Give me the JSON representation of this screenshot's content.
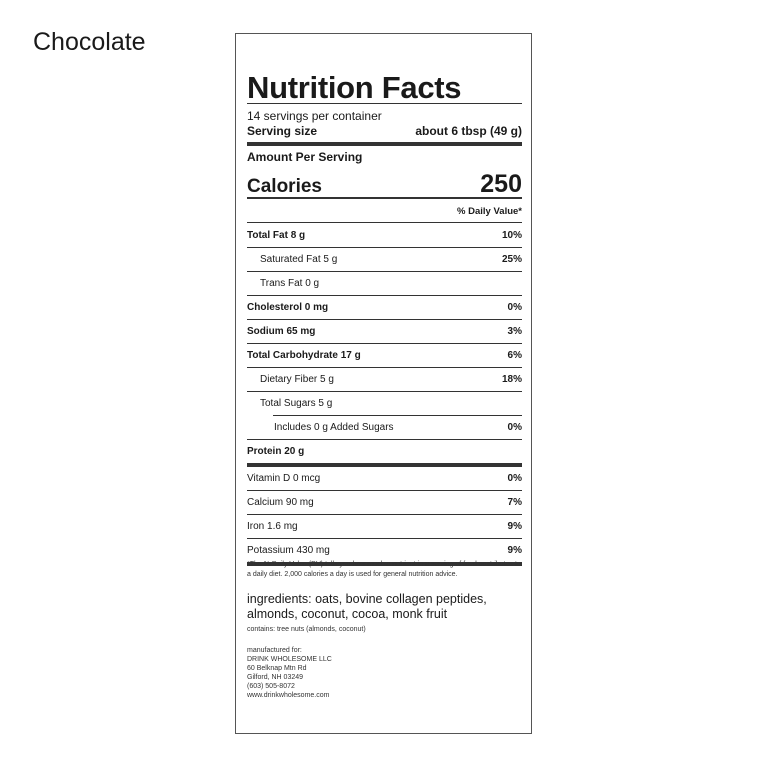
{
  "flavor": "Chocolate",
  "label": {
    "title": "Nutrition Facts",
    "servings_per_container": "14 servings per container",
    "serving_size_label": "Serving size",
    "serving_size_value": "about 6 tbsp (49 g)",
    "amount_per_serving": "Amount Per Serving",
    "calories_label": "Calories",
    "calories_value": "250",
    "daily_value_header": "% Daily Value*",
    "nutrients": [
      {
        "name": "Total Fat 8 g",
        "pct": "10%"
      },
      {
        "name": "Saturated Fat 5 g",
        "pct": "25%"
      },
      {
        "name": "Trans Fat 0 g",
        "pct": ""
      },
      {
        "name": "Cholesterol 0 mg",
        "pct": "0%"
      },
      {
        "name": "Sodium 65 mg",
        "pct": "3%"
      },
      {
        "name": "Total Carbohydrate 17 g",
        "pct": "6%"
      },
      {
        "name": "Dietary Fiber 5 g",
        "pct": "18%"
      },
      {
        "name": "Total Sugars 5 g",
        "pct": ""
      },
      {
        "name": "Includes 0 g Added Sugars",
        "pct": "0%"
      },
      {
        "name": "Protein 20 g",
        "pct": ""
      }
    ],
    "vitamins": [
      {
        "name": "Vitamin D 0 mcg",
        "pct": "0%"
      },
      {
        "name": "Calcium 90 mg",
        "pct": "7%"
      },
      {
        "name": "Iron 1.6 mg",
        "pct": "9%"
      },
      {
        "name": "Potassium 430 mg",
        "pct": "9%"
      }
    ],
    "footnote": "*The % Daily Value (DV) tells you how much a nutrient in a serving of food contributes to a daily diet. 2,000 calories a day is used for general nutrition advice.",
    "ingredients": "ingredients: oats, bovine collagen peptides, almonds, coconut, cocoa, monk fruit",
    "contains": "contains: tree nuts (almonds, coconut)",
    "manufacturer": {
      "label": "manufactured for:",
      "name": "DRINK WHOLESOME LLC",
      "address1": "60 Belknap Mtn Rd",
      "address2": "Gilford, NH 03249",
      "phone": "(603) 505-8072",
      "website": "www.drinkwholesome.com"
    }
  }
}
